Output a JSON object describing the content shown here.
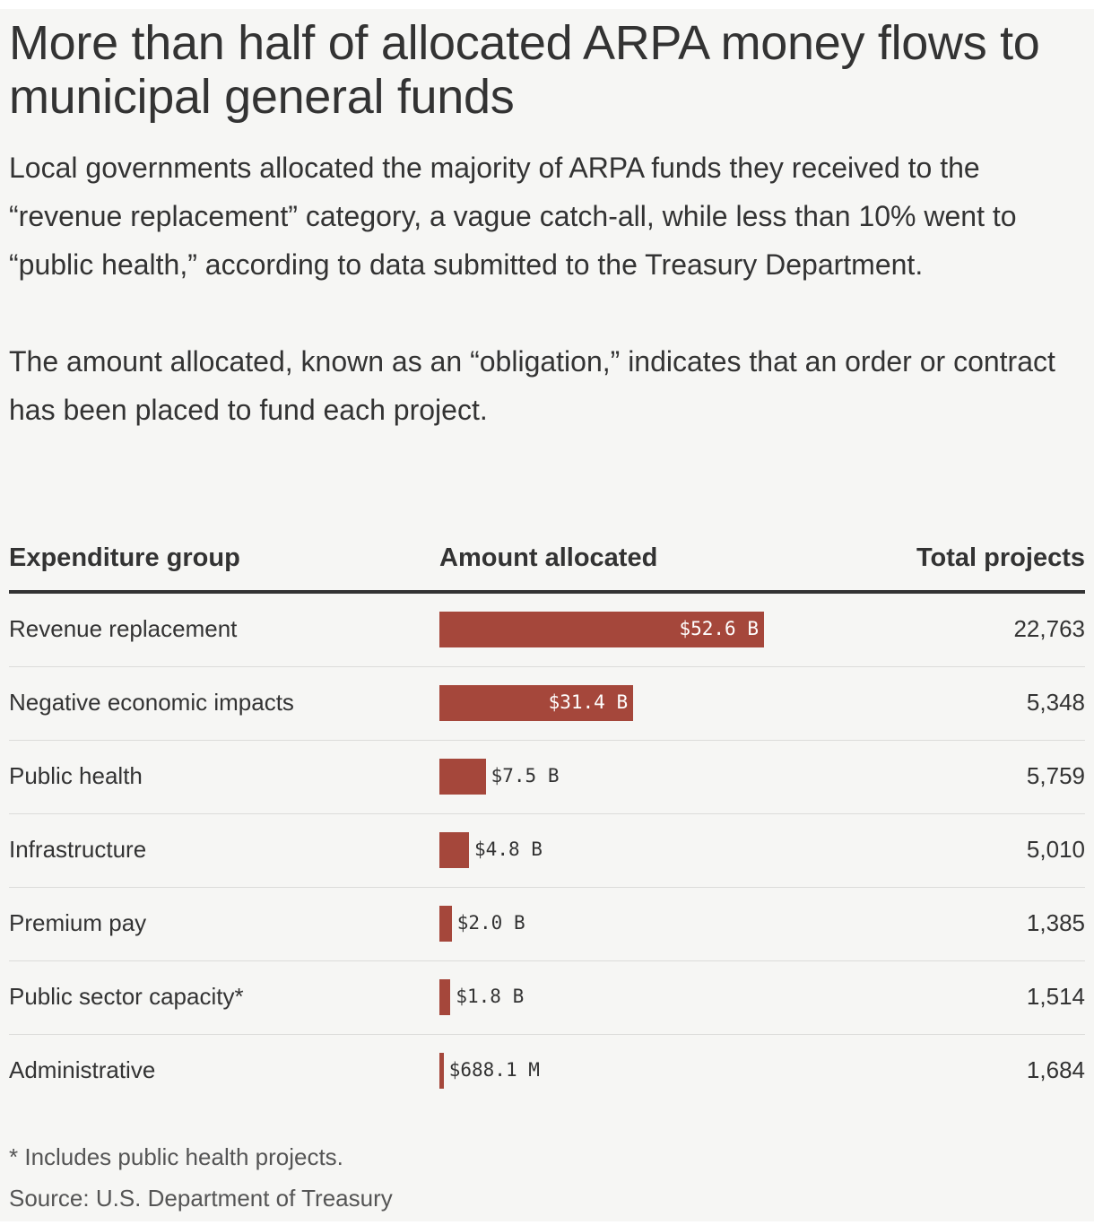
{
  "header": {
    "title": "More than half of allocated ARPA money flows to municipal general funds",
    "paragraphs": [
      "Local governments allocated the majority of ARPA funds they received to the “revenue replacement” category, a vague catch-all, while less than 10% went to “public health,” according to data submitted to the Treasury Department.",
      "The amount allocated, known as an “obligation,” indicates that an order or contract has been placed to fund each project."
    ]
  },
  "columns": {
    "group": "Expenditure group",
    "amount": "Amount allocated",
    "projects": "Total projects"
  },
  "chart_data": {
    "type": "table",
    "title": "More than half of allocated ARPA money flows to municipal general funds",
    "columns": [
      "Expenditure group",
      "Amount allocated",
      "Total projects"
    ],
    "categories": [
      "Revenue replacement",
      "Negative economic impacts",
      "Public health",
      "Infrastructure",
      "Premium pay",
      "Public sector capacity*",
      "Administrative"
    ],
    "rows": [
      {
        "group": "Revenue replacement",
        "amount": 52600000000,
        "amount_label": "$52.6 B",
        "projects": "22,763"
      },
      {
        "group": "Negative economic impacts",
        "amount": 31400000000,
        "amount_label": "$31.4 B",
        "projects": "5,348"
      },
      {
        "group": "Public health",
        "amount": 7500000000,
        "amount_label": "$7.5 B",
        "projects": "5,759"
      },
      {
        "group": "Infrastructure",
        "amount": 4800000000,
        "amount_label": "$4.8 B",
        "projects": "5,010"
      },
      {
        "group": "Premium pay",
        "amount": 2000000000,
        "amount_label": "$2.0 B",
        "projects": "1,385"
      },
      {
        "group": "Public sector capacity*",
        "amount": 1800000000,
        "amount_label": "$1.8 B",
        "projects": "1,514"
      },
      {
        "group": "Administrative",
        "amount": 688100000,
        "amount_label": "$688.1 M",
        "projects": "1,684"
      }
    ],
    "bar_color": "#a5473b",
    "label_color_inside": "#ffffff",
    "label_color_outside": "#333333"
  },
  "footer": {
    "footnote": "* Includes public health projects.",
    "source": "Source: U.S. Department of Treasury"
  }
}
